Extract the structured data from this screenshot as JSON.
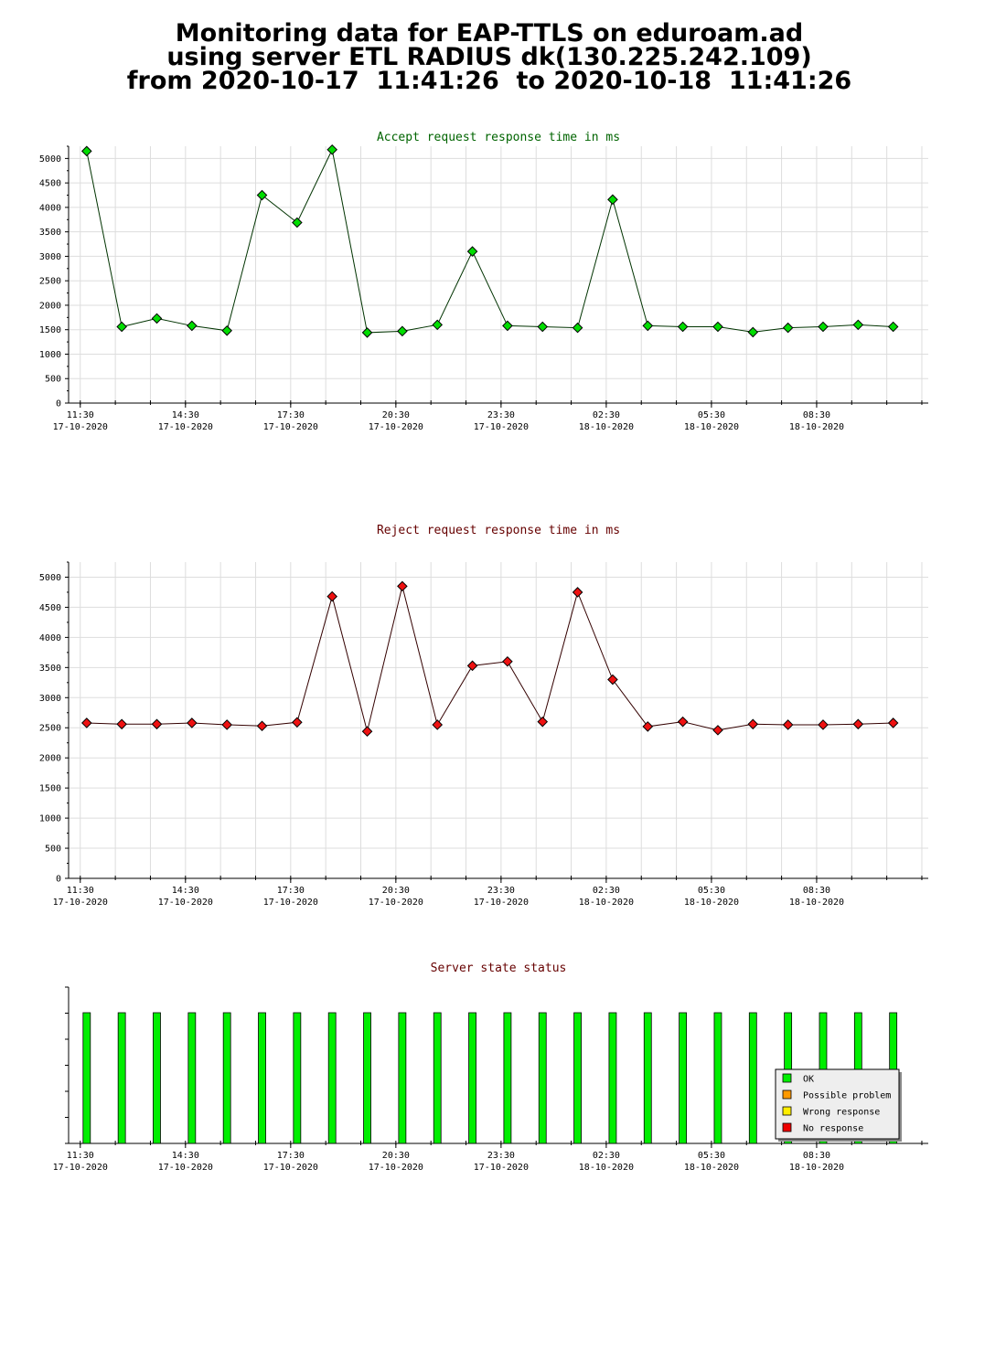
{
  "header": {
    "line1": "Monitoring data for EAP-TTLS on eduroam.ad",
    "line2": "using server ETL RADIUS dk(130.225.242.109)",
    "line3": "from 2020-10-17  11:41:26  to 2020-10-18  11:41:26"
  },
  "time_ticks": [
    {
      "time": "11:30",
      "date": "17-10-2020"
    },
    {
      "time": "14:30",
      "date": "17-10-2020"
    },
    {
      "time": "17:30",
      "date": "17-10-2020"
    },
    {
      "time": "20:30",
      "date": "17-10-2020"
    },
    {
      "time": "23:30",
      "date": "17-10-2020"
    },
    {
      "time": "02:30",
      "date": "18-10-2020"
    },
    {
      "time": "05:30",
      "date": "18-10-2020"
    },
    {
      "time": "08:30",
      "date": "18-10-2020"
    }
  ],
  "chart_data": [
    {
      "type": "line",
      "title": "Accept request response time in ms",
      "title_color": "#006400",
      "line_color": "#003300",
      "marker_color": "#00dd00",
      "ylim": [
        0,
        5250
      ],
      "yticks": [
        0,
        500,
        1000,
        1500,
        2000,
        2500,
        3000,
        3500,
        4000,
        4500,
        5000
      ],
      "xlim": [
        "2020-10-17 11:10",
        "2020-10-18 11:41"
      ],
      "x": [
        "2020-10-17 11:41",
        "2020-10-17 12:41",
        "2020-10-17 13:41",
        "2020-10-17 14:41",
        "2020-10-17 15:41",
        "2020-10-17 16:41",
        "2020-10-17 17:41",
        "2020-10-17 18:41",
        "2020-10-17 19:41",
        "2020-10-17 20:41",
        "2020-10-17 21:41",
        "2020-10-17 22:41",
        "2020-10-17 23:41",
        "2020-10-18 00:41",
        "2020-10-18 01:41",
        "2020-10-18 02:41",
        "2020-10-18 03:41",
        "2020-10-18 04:41",
        "2020-10-18 05:41",
        "2020-10-18 06:41",
        "2020-10-18 07:41",
        "2020-10-18 08:41",
        "2020-10-18 09:41",
        "2020-10-18 10:41"
      ],
      "values": [
        5150,
        1560,
        1730,
        1580,
        1480,
        4250,
        3690,
        5180,
        1440,
        1470,
        1600,
        3100,
        1580,
        1560,
        1540,
        4160,
        1580,
        1560,
        1560,
        1450,
        1540,
        1560,
        1600,
        1560
      ],
      "grid": true
    },
    {
      "type": "line",
      "title": "Reject request response time in ms",
      "title_color": "#660000",
      "line_color": "#330000",
      "marker_color": "#ee1111",
      "ylim": [
        0,
        5250
      ],
      "yticks": [
        0,
        500,
        1000,
        1500,
        2000,
        2500,
        3000,
        3500,
        4000,
        4500,
        5000
      ],
      "xlim": [
        "2020-10-17 11:10",
        "2020-10-18 11:41"
      ],
      "x": [
        "2020-10-17 11:41",
        "2020-10-17 12:41",
        "2020-10-17 13:41",
        "2020-10-17 14:41",
        "2020-10-17 15:41",
        "2020-10-17 16:41",
        "2020-10-17 17:41",
        "2020-10-17 18:41",
        "2020-10-17 19:41",
        "2020-10-17 20:41",
        "2020-10-17 21:41",
        "2020-10-17 22:41",
        "2020-10-17 23:41",
        "2020-10-18 00:41",
        "2020-10-18 01:41",
        "2020-10-18 02:41",
        "2020-10-18 03:41",
        "2020-10-18 04:41",
        "2020-10-18 05:41",
        "2020-10-18 06:41",
        "2020-10-18 07:41",
        "2020-10-18 08:41",
        "2020-10-18 09:41",
        "2020-10-18 10:41"
      ],
      "values": [
        2580,
        2560,
        2560,
        2580,
        2550,
        2530,
        2590,
        4680,
        2440,
        4850,
        2550,
        3530,
        3600,
        2600,
        4750,
        3300,
        2520,
        2600,
        2460,
        2560,
        2550,
        2550,
        2560,
        2580
      ],
      "grid": true
    },
    {
      "type": "bar",
      "title": "Server state status",
      "title_color": "#660000",
      "xlim": [
        "2020-10-17 11:10",
        "2020-10-18 11:41"
      ],
      "x": [
        "2020-10-17 11:41",
        "2020-10-17 12:41",
        "2020-10-17 13:41",
        "2020-10-17 14:41",
        "2020-10-17 15:41",
        "2020-10-17 16:41",
        "2020-10-17 17:41",
        "2020-10-17 18:41",
        "2020-10-17 19:41",
        "2020-10-17 20:41",
        "2020-10-17 21:41",
        "2020-10-17 22:41",
        "2020-10-17 23:41",
        "2020-10-18 00:41",
        "2020-10-18 01:41",
        "2020-10-18 02:41",
        "2020-10-18 03:41",
        "2020-10-18 04:41",
        "2020-10-18 05:41",
        "2020-10-18 06:41",
        "2020-10-18 07:41",
        "2020-10-18 08:41",
        "2020-10-18 09:41",
        "2020-10-18 10:41"
      ],
      "status": [
        "OK",
        "OK",
        "OK",
        "OK",
        "OK",
        "OK",
        "OK",
        "OK",
        "OK",
        "OK",
        "OK",
        "OK",
        "OK",
        "OK",
        "OK",
        "OK",
        "OK",
        "OK",
        "OK",
        "OK",
        "OK",
        "OK",
        "OK",
        "OK"
      ],
      "legend_position": "bottom-right",
      "legend": [
        {
          "label": "OK",
          "color": "#00ee00"
        },
        {
          "label": "Possible problem",
          "color": "#ff9900"
        },
        {
          "label": "Wrong response",
          "color": "#ffee00"
        },
        {
          "label": "No response",
          "color": "#ee0000"
        }
      ],
      "grid": false
    }
  ]
}
